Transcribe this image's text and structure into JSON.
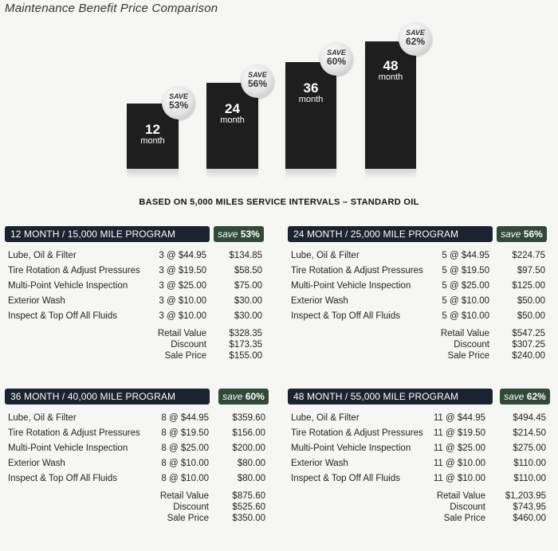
{
  "header": {
    "title": "Maintenance Benefit Price Comparison"
  },
  "chart": {
    "bars": [
      {
        "label": "12",
        "unit": "month",
        "save_word": "SAVE",
        "save_pct": "53%"
      },
      {
        "label": "24",
        "unit": "month",
        "save_word": "SAVE",
        "save_pct": "56%"
      },
      {
        "label": "36",
        "unit": "month",
        "save_word": "SAVE",
        "save_pct": "60%"
      },
      {
        "label": "48",
        "unit": "month",
        "save_word": "SAVE",
        "save_pct": "62%"
      }
    ]
  },
  "subtitle": "BASED ON 5,000 MILES SERVICE INTERVALS – STANDARD OIL",
  "programs": [
    {
      "name": "12 MONTH / 15,000 MILE PROGRAM",
      "save_word": "save",
      "save_pct": "53%",
      "rows": [
        {
          "service": "Lube, Oil & Filter",
          "qty": "3 @ $44.95",
          "amount": "$134.85"
        },
        {
          "service": "Tire Rotation & Adjust Pressures",
          "qty": "3 @ $19.50",
          "amount": "$58.50"
        },
        {
          "service": "Multi-Point Vehicle Inspection",
          "qty": "3 @ $25.00",
          "amount": "$75.00"
        },
        {
          "service": "Exterior Wash",
          "qty": "3 @ $10.00",
          "amount": "$30.00"
        },
        {
          "service": "Inspect & Top Off All Fluids",
          "qty": "3 @ $10.00",
          "amount": "$30.00"
        }
      ],
      "totals": [
        {
          "label": "Retail Value",
          "value": "$328.35"
        },
        {
          "label": "Discount",
          "value": "$173.35"
        },
        {
          "label": "Sale Price",
          "value": "$155.00"
        }
      ]
    },
    {
      "name": "24 MONTH / 25,000 MILE PROGRAM",
      "save_word": "save",
      "save_pct": "56%",
      "rows": [
        {
          "service": "Lube, Oil & Filter",
          "qty": "5 @ $44.95",
          "amount": "$224.75"
        },
        {
          "service": "Tire Rotation & Adjust Pressures",
          "qty": "5 @ $19.50",
          "amount": "$97.50"
        },
        {
          "service": "Multi-Point Vehicle Inspection",
          "qty": "5 @ $25.00",
          "amount": "$125.00"
        },
        {
          "service": "Exterior Wash",
          "qty": "5 @ $10.00",
          "amount": "$50.00"
        },
        {
          "service": "Inspect & Top Off All Fluids",
          "qty": "5 @ $10.00",
          "amount": "$50.00"
        }
      ],
      "totals": [
        {
          "label": "Retail Value",
          "value": "$547.25"
        },
        {
          "label": "Discount",
          "value": "$307.25"
        },
        {
          "label": "Sale Price",
          "value": "$240.00"
        }
      ]
    },
    {
      "name": "36 MONTH / 40,000 MILE PROGRAM",
      "save_word": "save",
      "save_pct": "60%",
      "rows": [
        {
          "service": "Lube, Oil & Filter",
          "qty": "8 @ $44.95",
          "amount": "$359.60"
        },
        {
          "service": "Tire Rotation & Adjust Pressures",
          "qty": "8 @ $19.50",
          "amount": "$156.00"
        },
        {
          "service": "Multi-Point Vehicle Inspection",
          "qty": "8 @ $25.00",
          "amount": "$200.00"
        },
        {
          "service": "Exterior Wash",
          "qty": "8 @ $10.00",
          "amount": "$80.00"
        },
        {
          "service": "Inspect & Top Off All Fluids",
          "qty": "8 @ $10.00",
          "amount": "$80.00"
        }
      ],
      "totals": [
        {
          "label": "Retail Value",
          "value": "$875.60"
        },
        {
          "label": "Discount",
          "value": "$525.60"
        },
        {
          "label": "Sale Price",
          "value": "$350.00"
        }
      ]
    },
    {
      "name": "48 MONTH / 55,000 MILE PROGRAM",
      "save_word": "save",
      "save_pct": "62%",
      "rows": [
        {
          "service": "Lube, Oil & Filter",
          "qty": "11 @ $44.95",
          "amount": "$494.45"
        },
        {
          "service": "Tire Rotation & Adjust Pressures",
          "qty": "11 @ $19.50",
          "amount": "$214.50"
        },
        {
          "service": "Multi-Point Vehicle Inspection",
          "qty": "11 @ $25.00",
          "amount": "$275.00"
        },
        {
          "service": "Exterior Wash",
          "qty": "11 @ $10.00",
          "amount": "$110.00"
        },
        {
          "service": "Inspect & Top Off All Fluids",
          "qty": "11 @ $10.00",
          "amount": "$110.00"
        }
      ],
      "totals": [
        {
          "label": "Retail Value",
          "value": "$1,203.95"
        },
        {
          "label": "Discount",
          "value": "$743.95"
        },
        {
          "label": "Sale Price",
          "value": "$460.00"
        }
      ]
    }
  ]
}
